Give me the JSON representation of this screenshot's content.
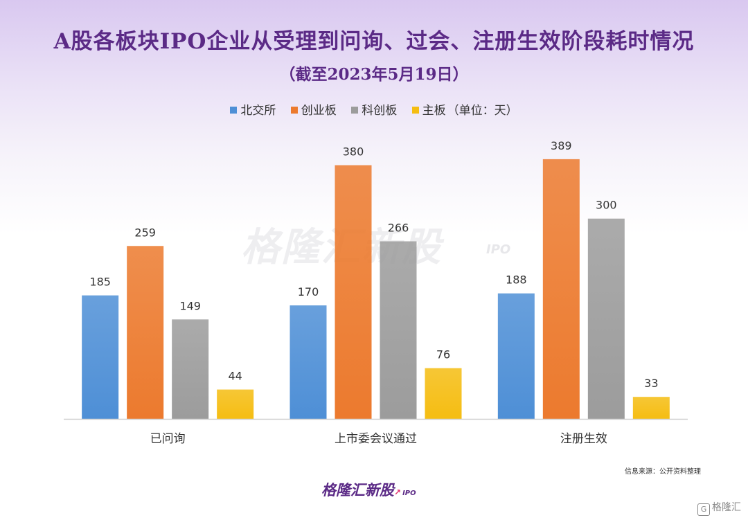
{
  "chart_data": {
    "type": "bar",
    "title": "A股各板块IPO企业从受理到问询、过会、注册生效阶段耗时情况",
    "subtitle": "（截至2023年5月19日）",
    "unit_note": "（单位：天）",
    "categories": [
      "已问询",
      "上市委会议通过",
      "注册生效"
    ],
    "series": [
      {
        "name": "北交所",
        "values": [
          185,
          170,
          188
        ],
        "color": "#4e8fd6"
      },
      {
        "name": "创业板",
        "values": [
          259,
          380,
          389
        ],
        "color": "#ec7a2e"
      },
      {
        "name": "科创板",
        "values": [
          149,
          266,
          300
        ],
        "color": "#9c9c9c"
      },
      {
        "name": "主板",
        "values": [
          44,
          76,
          33
        ],
        "color": "#f5bd12"
      }
    ],
    "ylim": [
      0,
      420
    ],
    "grid": false,
    "legend_position": "top"
  },
  "watermark": {
    "text": "格隆汇新股",
    "sub": "IPO"
  },
  "source": "信息来源：公开资料整理",
  "logo": {
    "text": "格隆汇新股",
    "sub": "IPO"
  },
  "corner_mark": "格隆汇"
}
